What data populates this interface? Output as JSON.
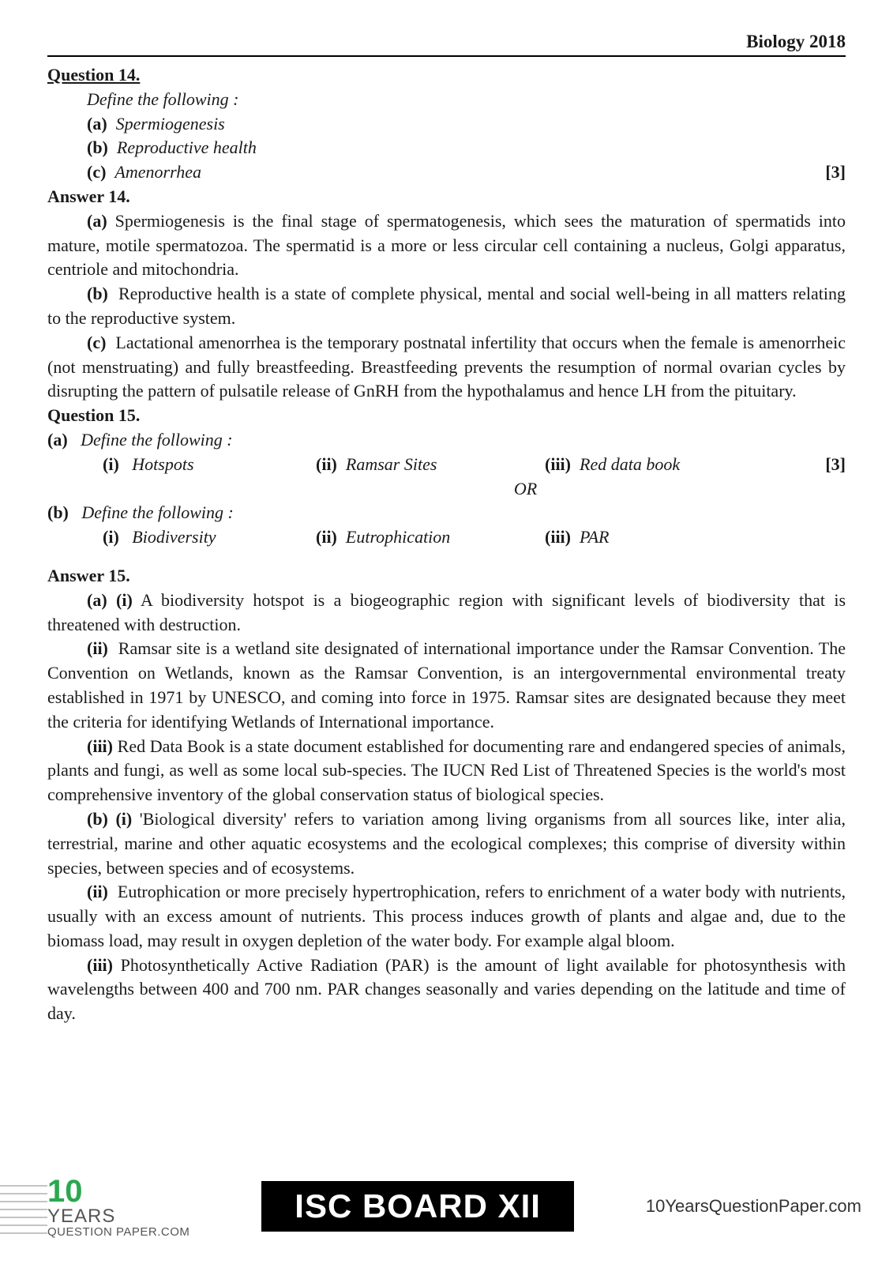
{
  "header": {
    "title": "Biology 2018"
  },
  "q14": {
    "heading": "Question 14.",
    "define": "Define the following :",
    "items": [
      {
        "label": "(a)",
        "text": "Spermiogenesis"
      },
      {
        "label": "(b)",
        "text": "Reproductive health"
      },
      {
        "label": "(c)",
        "text": "Amenorrhea"
      }
    ],
    "marks": "[3]",
    "answer_heading": "Answer 14.",
    "answers": {
      "a": "Spermiogenesis is the final stage of spermatogenesis, which sees the maturation of spermatids into mature, motile spermatozoa. The spermatid is a more or less circular cell containing a nucleus, Golgi apparatus, centriole and mitochondria.",
      "b": "Reproductive health is a state of complete physical, mental and social well-being in all matters relating to the reproductive system.",
      "c": "Lactational amenorrhea is the temporary postnatal infertility that occurs when the female is amenorrheic (not menstruating) and fully breastfeeding. Breastfeeding prevents the resumption of normal ovarian cycles by disrupting the pattern of pulsatile release of GnRH from the hypothalamus and hence LH from the pituitary."
    }
  },
  "q15": {
    "heading": "Question 15.",
    "partA": {
      "label": "(a)",
      "define": "Define the following :",
      "items": [
        {
          "label": "(i)",
          "text": "Hotspots"
        },
        {
          "label": "(ii)",
          "text": "Ramsar Sites"
        },
        {
          "label": "(iii)",
          "text": "Red data book"
        }
      ],
      "marks": "[3]"
    },
    "or": "OR",
    "partB": {
      "label": "(b)",
      "define": "Define the following :",
      "items": [
        {
          "label": "(i)",
          "text": "Biodiversity"
        },
        {
          "label": "(ii)",
          "text": "Eutrophication"
        },
        {
          "label": "(iii)",
          "text": "PAR"
        }
      ]
    },
    "answer_heading": "Answer 15.",
    "answers": {
      "a_i": "A biodiversity hotspot is a biogeographic region with significant levels of biodiversity that is threatened with destruction.",
      "a_ii": "Ramsar site is a wetland site designated of international importance under the Ramsar Convention. The Convention on Wetlands, known as the Ramsar Convention, is an intergovernmental environmental treaty established in 1971 by UNESCO, and coming into force in 1975. Ramsar sites are designated because they meet the criteria for identifying Wetlands of International importance.",
      "a_iii": "Red Data Book is a state document established for documenting rare and endangered species of animals, plants and fungi, as well as some local sub-species. The IUCN Red List of Threatened Species is the world's most comprehensive inventory of the global conservation status of biological species.",
      "b_i": "'Biological diversity' refers to variation among living organisms from all sources like, inter alia, terrestrial, marine and other aquatic ecosystems and the ecological complexes; this comprise of diversity within species, between species and of ecosystems.",
      "b_ii": "Eutrophication or more precisely hypertrophication, refers to enrichment of a water body with nutrients, usually with an excess amount of nutrients. This process induces growth of plants and algae and, due to the biomass load, may result in oxygen depletion of the water body. For example algal bloom.",
      "b_iii": "Photosynthetically Active Radiation (PAR) is the amount of light available for photosynthesis with wavelengths between 400 and 700 nm. PAR changes seasonally and varies depending on the latitude and time of day."
    }
  },
  "footer": {
    "ten": "10",
    "years": "YEARS",
    "qp": "QUESTION PAPER.COM",
    "center": "ISC BOARD XII",
    "site": "10YearsQuestionPaper.com"
  },
  "labels": {
    "a": "(a)",
    "b": "(b)",
    "c": "(c)",
    "i": "(i)",
    "ii": "(ii)",
    "iii": "(iii)",
    "a_i": "(a)  (i)",
    "b_i": "(b)  (i)"
  }
}
